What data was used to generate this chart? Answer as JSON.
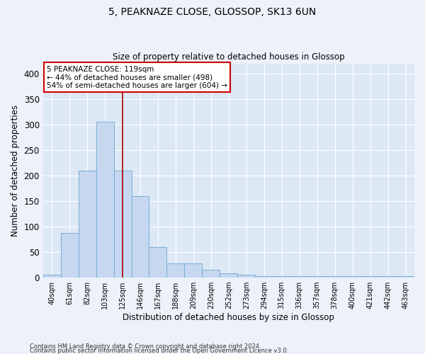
{
  "title": "5, PEAKNAZE CLOSE, GLOSSOP, SK13 6UN",
  "subtitle": "Size of property relative to detached houses in Glossop",
  "xlabel": "Distribution of detached houses by size in Glossop",
  "ylabel": "Number of detached properties",
  "bar_color": "#c5d8f0",
  "bar_edge_color": "#7aadd4",
  "background_color": "#dde8f5",
  "grid_color": "#ffffff",
  "fig_color": "#edf2fa",
  "categories": [
    "40sqm",
    "61sqm",
    "82sqm",
    "103sqm",
    "125sqm",
    "146sqm",
    "167sqm",
    "188sqm",
    "209sqm",
    "230sqm",
    "252sqm",
    "273sqm",
    "294sqm",
    "315sqm",
    "336sqm",
    "357sqm",
    "378sqm",
    "400sqm",
    "421sqm",
    "442sqm",
    "463sqm"
  ],
  "values": [
    5,
    88,
    210,
    305,
    210,
    160,
    60,
    28,
    28,
    15,
    8,
    5,
    3,
    3,
    3,
    3,
    3,
    3,
    3,
    3,
    3
  ],
  "ylim": [
    0,
    420
  ],
  "yticks": [
    0,
    50,
    100,
    150,
    200,
    250,
    300,
    350,
    400
  ],
  "red_line_index": 4,
  "annotation_text": "5 PEAKNAZE CLOSE: 119sqm\n← 44% of detached houses are smaller (498)\n54% of semi-detached houses are larger (604) →",
  "annotation_box_color": "#ffffff",
  "annotation_box_edge_color": "#cc0000",
  "red_line_color": "#aa0000",
  "footer_line1": "Contains HM Land Registry data © Crown copyright and database right 2024.",
  "footer_line2": "Contains public sector information licensed under the Open Government Licence v3.0."
}
